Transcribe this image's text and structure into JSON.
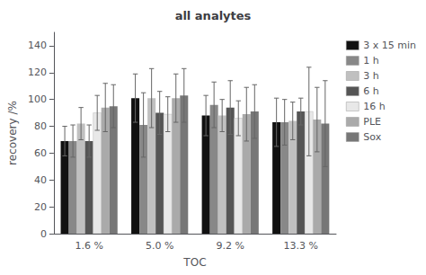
{
  "chart_data": {
    "type": "bar",
    "title": "all analytes",
    "xlabel": "TOC",
    "ylabel": "recovery /%",
    "categories": [
      "1.6 %",
      "5.0 %",
      "9.2 %",
      "13.3 %"
    ],
    "series": [
      {
        "name": "3 x 15 min",
        "color": "#111111",
        "values": [
          69,
          101,
          88,
          83
        ],
        "errors": [
          11,
          18,
          15,
          18
        ]
      },
      {
        "name": "1 h",
        "color": "#888888",
        "values": [
          69,
          81,
          96,
          83
        ],
        "errors": [
          12,
          24,
          17,
          17
        ]
      },
      {
        "name": "3 h",
        "color": "#c0c0c0",
        "values": [
          82,
          101,
          88,
          84
        ],
        "errors": [
          12,
          22,
          12,
          14
        ]
      },
      {
        "name": "6 h",
        "color": "#555555",
        "values": [
          69,
          90,
          94,
          91
        ],
        "errors": [
          12,
          16,
          20,
          10
        ]
      },
      {
        "name": "16 h",
        "color": "#e8e8e8",
        "values": [
          90,
          89,
          86,
          91
        ],
        "errors": [
          13,
          13,
          13,
          33
        ]
      },
      {
        "name": "PLE",
        "color": "#aaaaaa",
        "values": [
          94,
          101,
          89,
          85
        ],
        "errors": [
          18,
          18,
          20,
          24
        ]
      },
      {
        "name": "Sox",
        "color": "#777777",
        "values": [
          95,
          103,
          91,
          82
        ],
        "errors": [
          16,
          20,
          20,
          32
        ]
      }
    ],
    "ylim": [
      0,
      150
    ],
    "yticks": [
      0,
      20,
      40,
      60,
      80,
      100,
      120,
      140
    ],
    "grid": false,
    "legend": "upper right"
  }
}
